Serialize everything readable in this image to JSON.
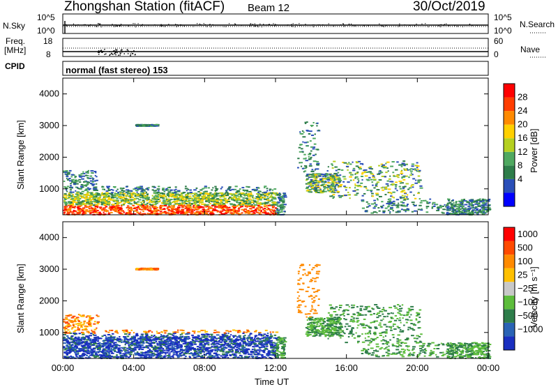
{
  "header": {
    "station": "Zhongshan Station (fitACF)",
    "beam": "Beam 12",
    "date": "30/Oct/2019"
  },
  "noise_panel": {
    "left_label": "N.Sky",
    "right_label": "N.Search",
    "left_ticks": [
      "10^5",
      "10^0"
    ],
    "right_ticks": [
      "10^5",
      "10^0"
    ]
  },
  "freq_panel": {
    "left_label_line1": "Freq.",
    "left_label_line2": "[MHz]",
    "left_ticks": [
      "18",
      "8"
    ],
    "right_ticks": [
      "60",
      "0"
    ],
    "right_label": "Nave"
  },
  "cpid": {
    "label": "CPID",
    "value": "normal (fast stereo) 153"
  },
  "x_axis": {
    "title": "Time UT",
    "ticks": [
      "00:00",
      "04:00",
      "08:00",
      "12:00",
      "16:00",
      "20:00",
      "00:00"
    ]
  },
  "chart_data": [
    {
      "type": "heatmap",
      "title": "",
      "ylabel": "Slant Range [km]",
      "xlabel": "Time UT",
      "ylim": [
        180,
        4500
      ],
      "y_ticks": [
        1000,
        2000,
        3000,
        4000
      ],
      "x_ticks": [
        "00:00",
        "04:00",
        "08:00",
        "12:00",
        "16:00",
        "20:00",
        "00:00"
      ],
      "colorbar": {
        "label": "Power [dB]",
        "tick_labels": [
          "4",
          "8",
          "12",
          "16",
          "20",
          "24",
          "28"
        ],
        "colors": [
          "#0000ff",
          "#2a4fb8",
          "#2e7d4a",
          "#4fa860",
          "#b5d020",
          "#ffd000",
          "#ff8a00",
          "#ff3d00",
          "#ff0000"
        ]
      }
    },
    {
      "type": "heatmap",
      "title": "",
      "ylabel": "Slant Range [km]",
      "xlabel": "Time UT",
      "ylim": [
        180,
        4500
      ],
      "y_ticks": [
        1000,
        2000,
        3000,
        4000
      ],
      "x_ticks": [
        "00:00",
        "04:00",
        "08:00",
        "12:00",
        "16:00",
        "20:00",
        "00:00"
      ],
      "colorbar": {
        "label": "Velocity [m s⁻¹]",
        "tick_labels": [
          "1000",
          "500",
          "100",
          "25",
          "−25",
          "−100",
          "−500",
          "−1000"
        ],
        "colors": [
          "#1a2fc0",
          "#2a63b5",
          "#2e7d4a",
          "#5dbd3c",
          "#c8c8c8",
          "#ffc000",
          "#ff8a00",
          "#ff4a00",
          "#ff0000"
        ]
      }
    }
  ]
}
